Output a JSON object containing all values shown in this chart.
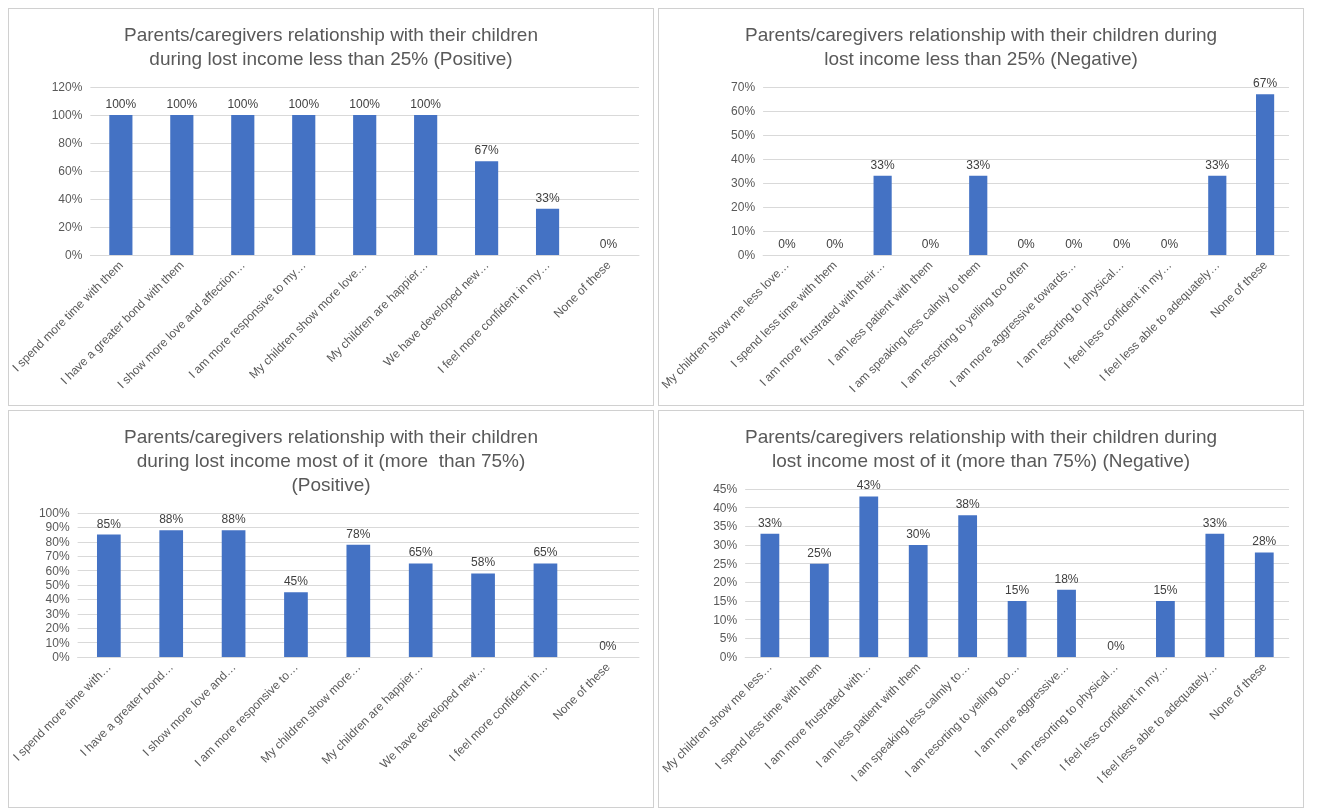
{
  "chart_data": [
    {
      "type": "bar",
      "title": "Parents/caregivers relationship with their children\nduring lost income less than 25% (Positive)",
      "categories": [
        "I spend more time with them",
        "I have a greater bond with them",
        "I show more love and affection…",
        "I am more responsive to my…",
        "My children show more love…",
        "My children are happier…",
        "We have developed new…",
        "I feel more confident in my…",
        "None of these"
      ],
      "values": [
        100,
        100,
        100,
        100,
        100,
        100,
        67,
        33,
        0
      ],
      "value_labels": [
        "100%",
        "100%",
        "100%",
        "100%",
        "100%",
        "100%",
        "67%",
        "33%",
        "0%"
      ],
      "color": "#4472c4",
      "ylim": [
        0,
        120
      ],
      "yticks": [
        {
          "value": 0,
          "label": "0%"
        },
        {
          "value": 20,
          "label": "20%"
        },
        {
          "value": 40,
          "label": "40%"
        },
        {
          "value": 60,
          "label": "60%"
        },
        {
          "value": 80,
          "label": "80%"
        },
        {
          "value": 100,
          "label": "100%"
        },
        {
          "value": 120,
          "label": "120%"
        }
      ],
      "grid": "y"
    },
    {
      "type": "bar",
      "title": "Parents/caregivers relationship with their children during\nlost income less than 25% (Negative)",
      "categories": [
        "My children show me less love…",
        "I spend less time with them",
        "I am more frustrated with their…",
        "I am less patient with them",
        "I am speaking less calmly to them",
        "I am resorting to yelling too often",
        "I am more aggressive towards…",
        "I am resorting to physical…",
        "I feel less confident in my…",
        "I feel less able to adequately…",
        "None of these"
      ],
      "values": [
        0,
        0,
        33,
        0,
        33,
        0,
        0,
        0,
        0,
        33,
        67
      ],
      "value_labels": [
        "0%",
        "0%",
        "33%",
        "0%",
        "33%",
        "0%",
        "0%",
        "0%",
        "0%",
        "33%",
        "67%"
      ],
      "color": "#4472c4",
      "ylim": [
        0,
        70
      ],
      "yticks": [
        {
          "value": 0,
          "label": "0%"
        },
        {
          "value": 10,
          "label": "10%"
        },
        {
          "value": 20,
          "label": "20%"
        },
        {
          "value": 30,
          "label": "30%"
        },
        {
          "value": 40,
          "label": "40%"
        },
        {
          "value": 50,
          "label": "50%"
        },
        {
          "value": 60,
          "label": "60%"
        },
        {
          "value": 70,
          "label": "70%"
        }
      ],
      "grid": "y"
    },
    {
      "type": "bar",
      "title": "Parents/caregivers relationship with their children\nduring lost income most of it (more  than 75%)\n(Positive)",
      "categories": [
        "I spend more time with…",
        "I have a greater bond…",
        "I show more love and…",
        "I am more responsive to…",
        "My children show more…",
        "My children are happier…",
        "We have developed new…",
        "I feel more confident in…",
        "None of these"
      ],
      "values": [
        85,
        88,
        88,
        45,
        78,
        65,
        58,
        65,
        0
      ],
      "value_labels": [
        "85%",
        "88%",
        "88%",
        "45%",
        "78%",
        "65%",
        "58%",
        "65%",
        "0%"
      ],
      "color": "#4472c4",
      "ylim": [
        0,
        100
      ],
      "yticks": [
        {
          "value": 0,
          "label": "0%"
        },
        {
          "value": 10,
          "label": "10%"
        },
        {
          "value": 20,
          "label": "20%"
        },
        {
          "value": 30,
          "label": "30%"
        },
        {
          "value": 40,
          "label": "40%"
        },
        {
          "value": 50,
          "label": "50%"
        },
        {
          "value": 60,
          "label": "60%"
        },
        {
          "value": 70,
          "label": "70%"
        },
        {
          "value": 80,
          "label": "80%"
        },
        {
          "value": 90,
          "label": "90%"
        },
        {
          "value": 100,
          "label": "100%"
        }
      ],
      "grid": "y"
    },
    {
      "type": "bar",
      "title": "Parents/caregivers relationship with their children during\nlost income most of it (more than 75%) (Negative)",
      "categories": [
        "My children show me less…",
        "I spend less time with them",
        "I am more frustrated with…",
        "I am less patient with them",
        "I am speaking less calmly to…",
        "I am resorting to yelling too…",
        "I am more aggressive…",
        "I am resorting to physical…",
        "I feel less confident in my…",
        "I feel less able to adequately…",
        "None of these"
      ],
      "values": [
        33,
        25,
        43,
        30,
        38,
        15,
        18,
        0,
        15,
        33,
        28
      ],
      "value_labels": [
        "33%",
        "25%",
        "43%",
        "30%",
        "38%",
        "15%",
        "18%",
        "0%",
        "15%",
        "33%",
        "28%"
      ],
      "color": "#4472c4",
      "ylim": [
        0,
        45
      ],
      "yticks": [
        {
          "value": 0,
          "label": "0%"
        },
        {
          "value": 5,
          "label": "5%"
        },
        {
          "value": 10,
          "label": "10%"
        },
        {
          "value": 15,
          "label": "15%"
        },
        {
          "value": 20,
          "label": "20%"
        },
        {
          "value": 25,
          "label": "25%"
        },
        {
          "value": 30,
          "label": "30%"
        },
        {
          "value": 35,
          "label": "35%"
        },
        {
          "value": 40,
          "label": "40%"
        },
        {
          "value": 45,
          "label": "45%"
        }
      ],
      "grid": "y"
    }
  ]
}
